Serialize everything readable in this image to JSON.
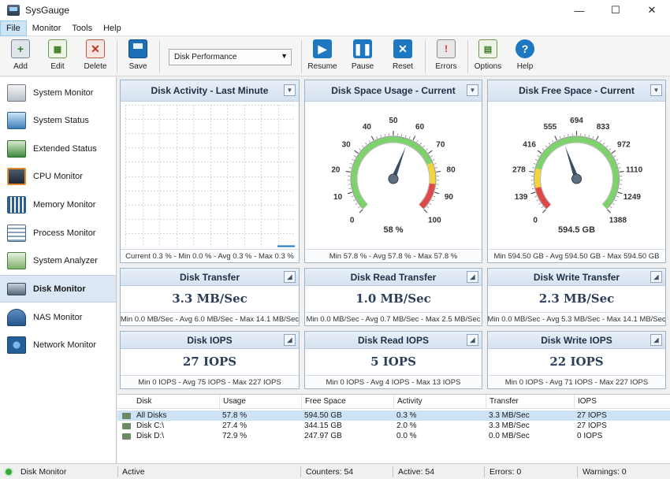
{
  "window": {
    "title": "SysGauge",
    "min": "—",
    "max": "☐",
    "close": "✕"
  },
  "menu": [
    "File",
    "Monitor",
    "Tools",
    "Help"
  ],
  "toolbar": {
    "add": "Add",
    "edit": "Edit",
    "delete": "Delete",
    "save": "Save",
    "profile": "Disk Performance",
    "resume": "Resume",
    "pause": "Pause",
    "reset": "Reset",
    "errors": "Errors",
    "options": "Options",
    "help": "Help"
  },
  "sidebar": {
    "items": [
      {
        "label": "System Monitor",
        "icon": "system-monitor-icon"
      },
      {
        "label": "System Status",
        "icon": "system-status-icon"
      },
      {
        "label": "Extended Status",
        "icon": "extended-status-icon"
      },
      {
        "label": "CPU Monitor",
        "icon": "cpu-icon"
      },
      {
        "label": "Memory Monitor",
        "icon": "memory-icon"
      },
      {
        "label": "Process Monitor",
        "icon": "process-icon"
      },
      {
        "label": "System Analyzer",
        "icon": "analyzer-icon"
      },
      {
        "label": "Disk Monitor",
        "icon": "disk-icon"
      },
      {
        "label": "NAS Monitor",
        "icon": "nas-icon"
      },
      {
        "label": "Network Monitor",
        "icon": "network-icon"
      }
    ],
    "selected": "Disk Monitor"
  },
  "panels": {
    "activity": {
      "title": "Disk Activity - Last Minute",
      "footer": "Current 0.3 % - Min 0.0 % - Avg 0.3 % - Max 0.3 %",
      "level": 0.003
    },
    "space_usage": {
      "title": "Disk Space Usage - Current",
      "value": "58 %",
      "value_num": 57.8,
      "min": 0,
      "max": 100,
      "ticks": [
        "0",
        "10",
        "20",
        "30",
        "40",
        "50",
        "60",
        "70",
        "80",
        "90",
        "100"
      ],
      "footer": "Min 57.8 % - Avg 57.8 % - Max 57.8 %"
    },
    "free_space": {
      "title": "Disk Free Space - Current",
      "value": "594.5 GB",
      "value_num": 594.5,
      "min": 0,
      "max": 1388,
      "ticks": [
        "0",
        "139",
        "278",
        "416",
        "555",
        "694",
        "833",
        "972",
        "1110",
        "1249",
        "1388"
      ],
      "footer": "Min 594.50 GB - Avg 594.50 GB - Max 594.50 GB"
    },
    "transfer": {
      "title": "Disk Transfer",
      "value": "3.3 MB/Sec",
      "footer": "Min 0.0 MB/Sec - Avg 6.0 MB/Sec - Max 14.1 MB/Sec"
    },
    "read_transfer": {
      "title": "Disk Read Transfer",
      "value": "1.0 MB/Sec",
      "footer": "Min 0.0 MB/Sec - Avg 0.7 MB/Sec - Max 2.5 MB/Sec"
    },
    "write_transfer": {
      "title": "Disk Write Transfer",
      "value": "2.3 MB/Sec",
      "footer": "Min 0.0 MB/Sec - Avg 5.3 MB/Sec - Max 14.1 MB/Sec"
    },
    "iops": {
      "title": "Disk IOPS",
      "value": "27 IOPS",
      "footer": "Min 0 IOPS - Avg 75 IOPS - Max 227 IOPS"
    },
    "read_iops": {
      "title": "Disk Read IOPS",
      "value": "5 IOPS",
      "footer": "Min 0 IOPS - Avg 4 IOPS - Max 13 IOPS"
    },
    "write_iops": {
      "title": "Disk Write IOPS",
      "value": "22 IOPS",
      "footer": "Min 0 IOPS - Avg 71 IOPS - Max 227 IOPS"
    }
  },
  "table": {
    "columns": [
      "Disk",
      "Usage",
      "Free Space",
      "Activity",
      "Transfer",
      "IOPS"
    ],
    "rows": [
      [
        "All Disks",
        "57.8 %",
        "594.50 GB",
        "0.3 %",
        "3.3 MB/Sec",
        "27 IOPS"
      ],
      [
        "Disk C:\\",
        "27.4 %",
        "344.15 GB",
        "2.0 %",
        "3.3 MB/Sec",
        "27 IOPS"
      ],
      [
        "Disk D:\\",
        "72.9 %",
        "247.97 GB",
        "0.0 %",
        "0.0 MB/Sec",
        "0 IOPS"
      ]
    ]
  },
  "status": {
    "view": "Disk Monitor",
    "state": "Active",
    "counters": "Counters: 54",
    "active": "Active: 54",
    "errors": "Errors: 0",
    "warnings": "Warnings: 0"
  },
  "colors": {
    "accent": "#1d78c1",
    "gauge_green": "#7ed26b",
    "gauge_yellow": "#f2d43a",
    "gauge_red": "#e04848"
  }
}
